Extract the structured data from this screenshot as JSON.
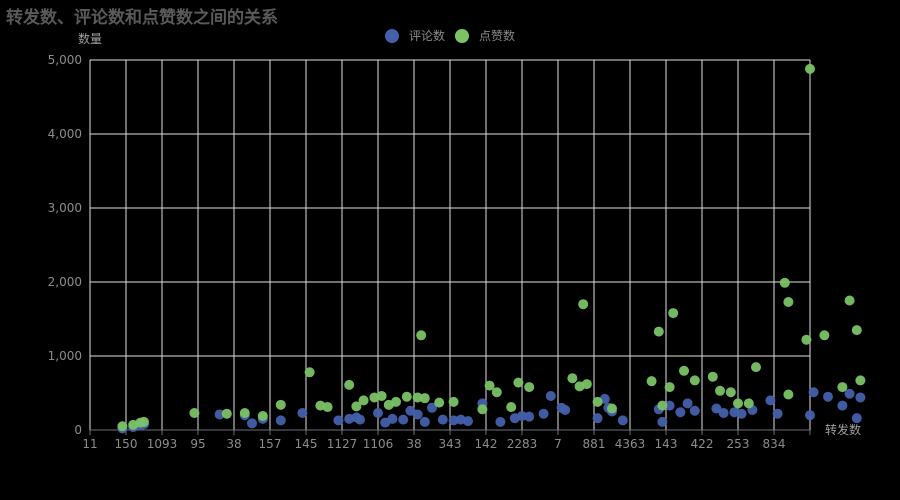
{
  "chart_data": {
    "type": "scatter",
    "title": "转发数、评论数和点赞数之间的关系",
    "xlabel": "转发数",
    "ylabel": "数量",
    "ylim": [
      0,
      5000
    ],
    "yticks": [
      "0",
      "1,000",
      "2,000",
      "3,000",
      "4,000",
      "5,000"
    ],
    "categories": [
      "11",
      "150",
      "1093",
      "95",
      "38",
      "157",
      "145",
      "1127",
      "1106",
      "38",
      "343",
      "142",
      "2283",
      "7",
      "881",
      "4363",
      "143",
      "422",
      "253",
      "834"
    ],
    "grid": true,
    "legend_position": "top-center",
    "series": [
      {
        "name": "评论数",
        "color": "#4460ab",
        "points": [
          [
            0.4,
            20
          ],
          [
            0.7,
            40
          ],
          [
            0.9,
            60
          ],
          [
            1.0,
            80
          ],
          [
            3.1,
            210
          ],
          [
            3.8,
            200
          ],
          [
            4.0,
            90
          ],
          [
            4.3,
            150
          ],
          [
            4.8,
            130
          ],
          [
            5.4,
            230
          ],
          [
            6.4,
            130
          ],
          [
            6.7,
            150
          ],
          [
            6.9,
            170
          ],
          [
            7.0,
            140
          ],
          [
            7.5,
            230
          ],
          [
            7.7,
            100
          ],
          [
            7.9,
            150
          ],
          [
            8.2,
            140
          ],
          [
            8.4,
            260
          ],
          [
            8.6,
            210
          ],
          [
            8.8,
            110
          ],
          [
            9.0,
            300
          ],
          [
            9.3,
            140
          ],
          [
            9.6,
            130
          ],
          [
            9.8,
            140
          ],
          [
            10.0,
            120
          ],
          [
            10.4,
            360
          ],
          [
            10.9,
            110
          ],
          [
            11.3,
            160
          ],
          [
            11.5,
            190
          ],
          [
            11.7,
            180
          ],
          [
            12.1,
            220
          ],
          [
            12.3,
            460
          ],
          [
            12.6,
            300
          ],
          [
            12.7,
            270
          ],
          [
            13.6,
            160
          ],
          [
            13.8,
            420
          ],
          [
            13.9,
            300
          ],
          [
            14.0,
            250
          ],
          [
            14.3,
            130
          ],
          [
            15.3,
            280
          ],
          [
            15.4,
            110
          ],
          [
            15.6,
            330
          ],
          [
            15.9,
            240
          ],
          [
            16.1,
            360
          ],
          [
            16.3,
            260
          ],
          [
            16.9,
            290
          ],
          [
            17.1,
            230
          ],
          [
            17.4,
            240
          ],
          [
            17.6,
            220
          ],
          [
            17.9,
            270
          ],
          [
            18.4,
            400
          ],
          [
            18.6,
            220
          ],
          [
            19.5,
            200
          ],
          [
            19.6,
            510
          ],
          [
            20.0,
            450
          ],
          [
            20.4,
            330
          ],
          [
            20.6,
            490
          ],
          [
            20.8,
            160
          ],
          [
            20.9,
            440
          ]
        ]
      },
      {
        "name": "点赞数",
        "color": "#7bc267",
        "points": [
          [
            0.4,
            50
          ],
          [
            0.7,
            70
          ],
          [
            0.9,
            100
          ],
          [
            1.0,
            110
          ],
          [
            2.4,
            230
          ],
          [
            3.3,
            220
          ],
          [
            3.8,
            230
          ],
          [
            4.3,
            190
          ],
          [
            4.8,
            340
          ],
          [
            5.6,
            780
          ],
          [
            5.9,
            330
          ],
          [
            6.1,
            310
          ],
          [
            6.7,
            610
          ],
          [
            6.9,
            320
          ],
          [
            7.1,
            400
          ],
          [
            7.4,
            440
          ],
          [
            7.6,
            460
          ],
          [
            7.8,
            340
          ],
          [
            8.0,
            380
          ],
          [
            8.3,
            450
          ],
          [
            8.6,
            440
          ],
          [
            8.7,
            1280
          ],
          [
            8.8,
            430
          ],
          [
            9.2,
            370
          ],
          [
            9.6,
            380
          ],
          [
            10.4,
            280
          ],
          [
            10.6,
            600
          ],
          [
            10.8,
            510
          ],
          [
            11.2,
            310
          ],
          [
            11.4,
            640
          ],
          [
            11.7,
            580
          ],
          [
            12.9,
            700
          ],
          [
            13.1,
            590
          ],
          [
            13.2,
            1700
          ],
          [
            13.3,
            620
          ],
          [
            13.6,
            380
          ],
          [
            14.0,
            290
          ],
          [
            15.1,
            660
          ],
          [
            15.3,
            1330
          ],
          [
            15.4,
            330
          ],
          [
            15.6,
            580
          ],
          [
            15.7,
            1580
          ],
          [
            16.0,
            800
          ],
          [
            16.3,
            670
          ],
          [
            16.8,
            720
          ],
          [
            17.0,
            530
          ],
          [
            17.3,
            510
          ],
          [
            17.5,
            360
          ],
          [
            17.8,
            360
          ],
          [
            18.0,
            850
          ],
          [
            18.8,
            1990
          ],
          [
            18.9,
            1730
          ],
          [
            18.9,
            480
          ],
          [
            19.4,
            1220
          ],
          [
            19.5,
            4880
          ],
          [
            19.9,
            1280
          ],
          [
            20.4,
            580
          ],
          [
            20.6,
            1750
          ],
          [
            20.8,
            1350
          ],
          [
            20.9,
            670
          ]
        ]
      }
    ]
  }
}
